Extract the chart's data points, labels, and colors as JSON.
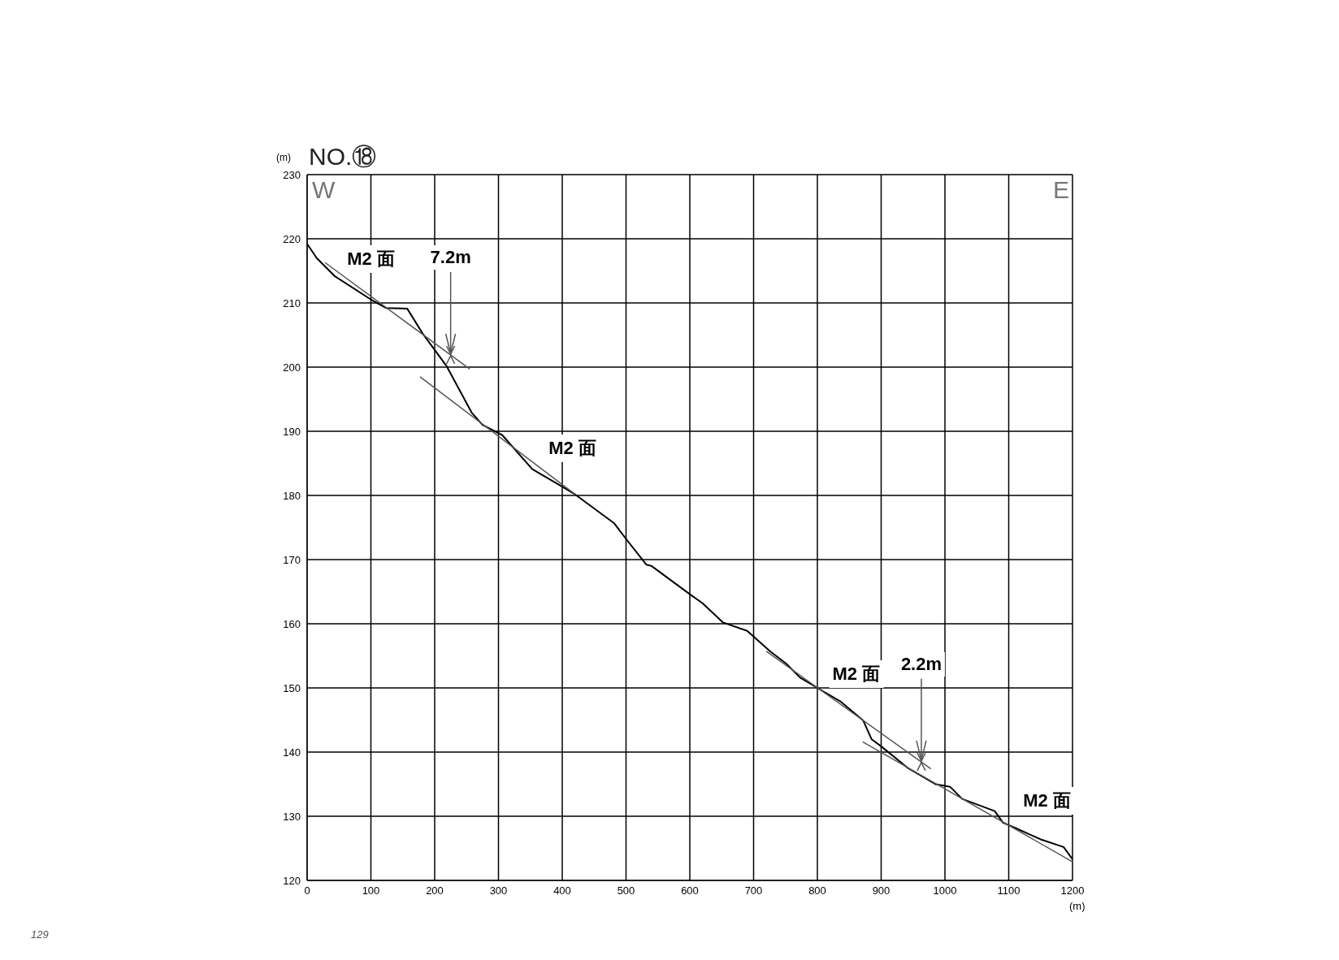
{
  "chart_data": {
    "type": "line",
    "title": "NO.⑱",
    "xlabel": "(m)",
    "ylabel": "(m)",
    "xlim": [
      0,
      1200
    ],
    "xticks": [
      0,
      100,
      200,
      300,
      400,
      500,
      600,
      700,
      800,
      900,
      1000,
      1100,
      1200
    ],
    "ylim": [
      120,
      230
    ],
    "yticks": [
      120,
      130,
      140,
      150,
      160,
      170,
      180,
      190,
      200,
      210,
      220,
      230
    ],
    "grid": true,
    "series": [
      {
        "color": "#000000",
        "x": [
          0,
          15,
          43,
          99,
          124,
          157,
          182,
          219,
          258,
          275,
          306,
          353,
          396,
          421,
          481,
          501,
          532,
          540,
          600,
          620,
          652,
          690,
          726,
          751,
          773,
          800,
          836,
          872,
          885,
          900,
          942,
          985,
          1008,
          1027,
          1078,
          1091,
          1112,
          1150,
          1186,
          1200
        ],
        "values": [
          219.2,
          217.0,
          214.2,
          210.6,
          209.2,
          209.1,
          205.1,
          200.1,
          192.9,
          191.0,
          189.4,
          184.1,
          181.6,
          180.1,
          175.7,
          173.1,
          169.2,
          169.0,
          164.6,
          163.2,
          160.2,
          158.9,
          155.7,
          153.8,
          151.6,
          150.0,
          147.9,
          144.9,
          142.0,
          140.9,
          137.5,
          135.0,
          134.6,
          132.7,
          130.8,
          129.0,
          128.1,
          126.4,
          125.2,
          123.3
        ]
      },
      {
        "type": "line",
        "color": "#555555",
        "x": [
          28,
          255
        ],
        "values": [
          216.3,
          199.7
        ]
      },
      {
        "type": "line",
        "color": "#555555",
        "x": [
          177,
          421
        ],
        "values": [
          198.5,
          180.1
        ]
      },
      {
        "type": "line",
        "color": "#555555",
        "x": [
          720,
          978
        ],
        "values": [
          155.7,
          137.4
        ]
      },
      {
        "type": "line",
        "color": "#555555",
        "x": [
          871,
          1200
        ],
        "values": [
          141.6,
          122.9
        ]
      }
    ],
    "annotations": [
      "W",
      "E",
      "129",
      "M2 面",
      {
        "text": "7.2m",
        "x": 225,
        "y": 201.9
      },
      "M2 面",
      "M2 面",
      {
        "text": "2.2m",
        "x": 963,
        "y": 138.5
      },
      "M2 面"
    ]
  }
}
